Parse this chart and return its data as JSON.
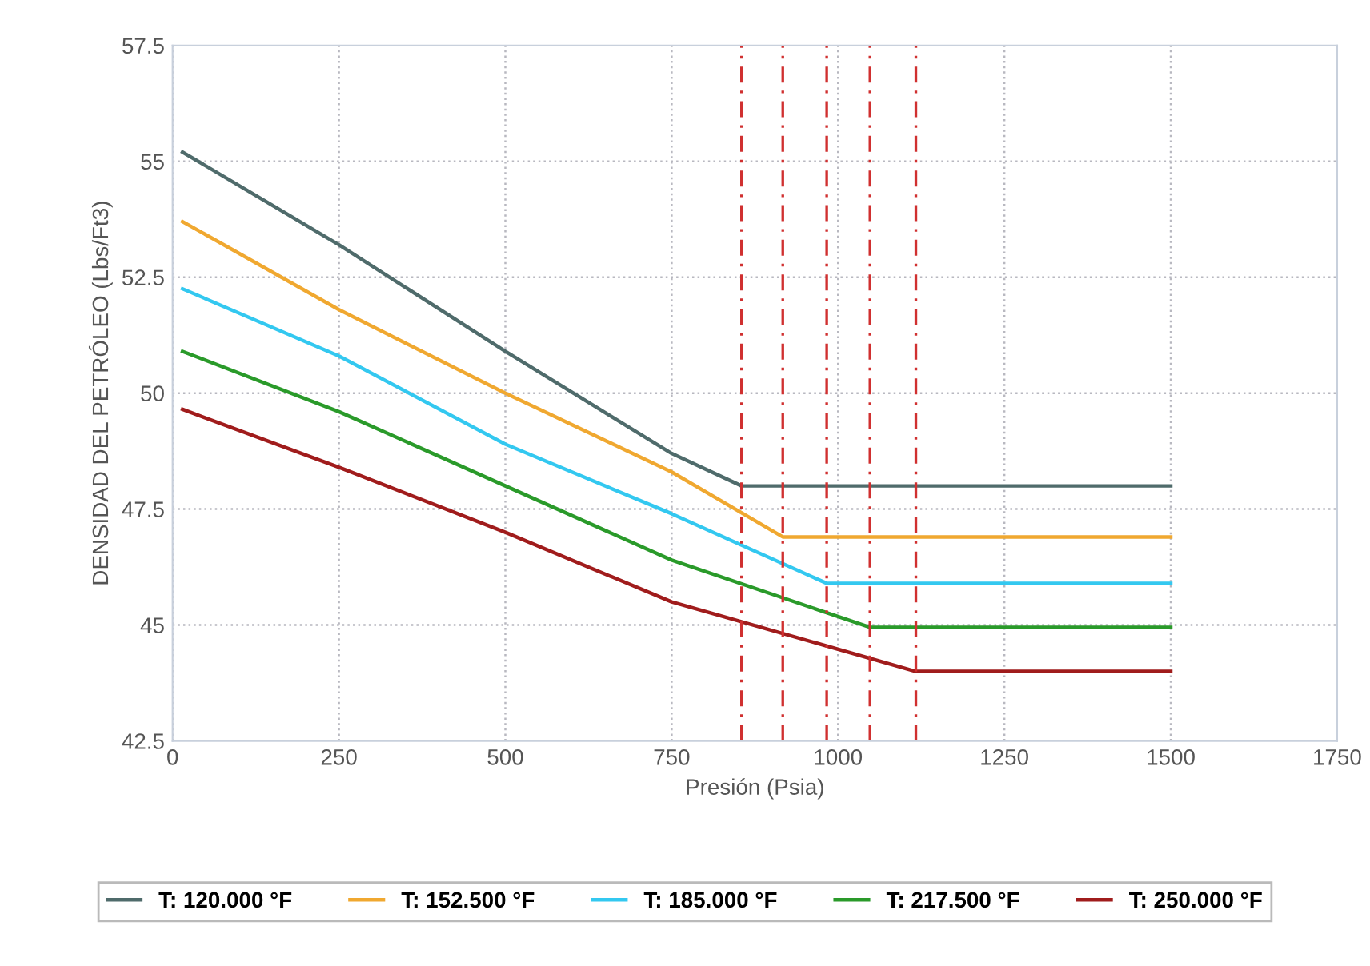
{
  "chart_data": {
    "type": "line",
    "xlabel": "Presión (Psia)",
    "ylabel": "DENSIDAD DEL PETRÓLEO (Lbs/Ft3)",
    "xlim": [
      0,
      1750
    ],
    "xticks": [
      0,
      250,
      500,
      750,
      1000,
      1250,
      1500,
      1750
    ],
    "ylim": [
      42.5,
      57.5
    ],
    "yticks": [
      42.5,
      45,
      47.5,
      50,
      52.5,
      55,
      57.5
    ],
    "grid": true,
    "legend": "bottom",
    "marker": "none",
    "line_style": "solid",
    "series": [
      {
        "name": "T: 120.000 °F",
        "color": "#4f6b6b",
        "x": [
          15,
          250,
          500,
          750,
          855,
          1500
        ],
        "values": [
          55.2,
          53.2,
          50.9,
          48.7,
          48.0,
          48.0
        ]
      },
      {
        "name": "T: 152.500 °F",
        "color": "#f0a830",
        "x": [
          15,
          250,
          500,
          750,
          917,
          1500
        ],
        "values": [
          53.7,
          51.8,
          50.0,
          48.3,
          46.9,
          46.9
        ]
      },
      {
        "name": "T: 185.000 °F",
        "color": "#33c8f0",
        "x": [
          15,
          250,
          500,
          750,
          983,
          1500
        ],
        "values": [
          52.25,
          50.8,
          48.9,
          47.4,
          45.9,
          45.9
        ]
      },
      {
        "name": "T: 217.500 °F",
        "color": "#2a9a2a",
        "x": [
          15,
          250,
          500,
          750,
          1048,
          1500
        ],
        "values": [
          50.9,
          49.6,
          48.0,
          46.4,
          44.95,
          44.95
        ]
      },
      {
        "name": "T: 250.000 °F",
        "color": "#a01c1c",
        "x": [
          15,
          250,
          500,
          750,
          1117,
          1500
        ],
        "values": [
          49.65,
          48.4,
          47.0,
          45.5,
          44.0,
          44.0
        ]
      }
    ],
    "ref_lines": [
      {
        "axis": "x",
        "value": 855,
        "color": "#d03030",
        "line_style": "dashed"
      },
      {
        "axis": "x",
        "value": 917,
        "color": "#d03030",
        "line_style": "dashed"
      },
      {
        "axis": "x",
        "value": 983,
        "color": "#d03030",
        "line_style": "dashed"
      },
      {
        "axis": "x",
        "value": 1048,
        "color": "#d03030",
        "line_style": "dashed"
      },
      {
        "axis": "x",
        "value": 1117,
        "color": "#d03030",
        "line_style": "dashed"
      }
    ]
  }
}
